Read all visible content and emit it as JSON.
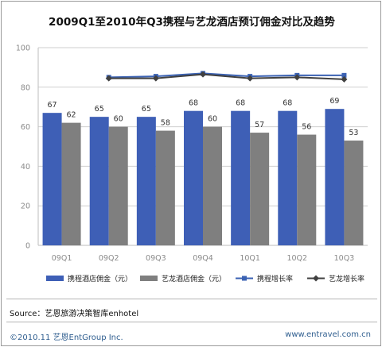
{
  "chart_data": {
    "type": "bar",
    "title": "2009Q1至2010年Q3携程与艺龙酒店预订佣金对比及趋势",
    "categories": [
      "09Q1",
      "09Q2",
      "09Q3",
      "09Q4",
      "10Q1",
      "10Q2",
      "10Q3"
    ],
    "ylim": [
      0,
      100
    ],
    "yticks": [
      "0",
      "20",
      "40",
      "60",
      "80",
      "100"
    ],
    "grid": true,
    "legend_position": "bottom",
    "series": [
      {
        "name": "携程酒店佣金（元）",
        "kind": "bar",
        "values": [
          67,
          65,
          65,
          68,
          68,
          68,
          69
        ],
        "labels": [
          "67",
          "65",
          "65",
          "68",
          "68",
          "68",
          "69"
        ]
      },
      {
        "name": "艺龙酒店佣金（元）",
        "kind": "bar",
        "values": [
          62,
          60,
          58,
          60,
          57,
          56,
          53
        ],
        "labels": [
          "62",
          "60",
          "58",
          "60",
          "57",
          "56",
          "53"
        ]
      },
      {
        "name": "携程增长率",
        "kind": "line",
        "values": [
          null,
          85,
          85.5,
          87,
          85.5,
          86,
          86
        ]
      },
      {
        "name": "艺龙增长率",
        "kind": "line",
        "values": [
          null,
          84.5,
          84.5,
          86.5,
          84.5,
          85,
          84
        ]
      }
    ]
  },
  "colors": {
    "ctrip_bar": "#3e5fb6",
    "elong_bar": "#7f7f7f",
    "ctrip_line": "#3b62b3",
    "elong_line": "#404040",
    "grid": "#cfcfcf"
  },
  "source": "Source：艺恩旅游决策智库enhotel",
  "footer": {
    "copyright": "©2010.11  艺恩EntGroup Inc.",
    "website": "www.entravel.com.cn"
  }
}
